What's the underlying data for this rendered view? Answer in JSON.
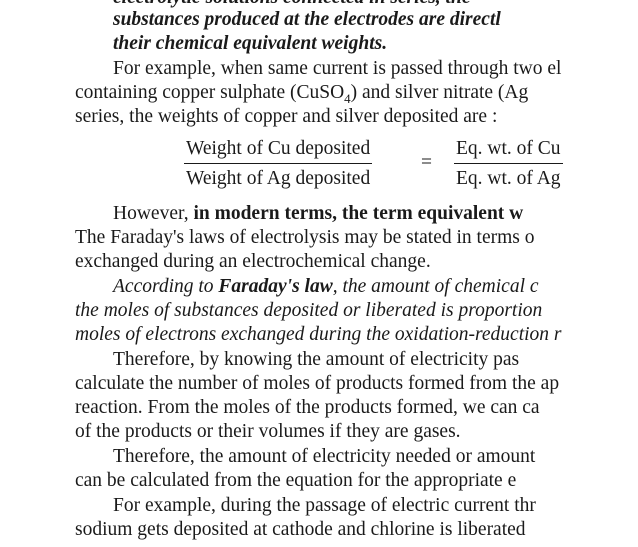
{
  "lines": [
    [
      "electrolytic solutions connected in series, the"
    ],
    [
      "substances produced at the electrodes are directl"
    ],
    [
      "their chemical equivalent weights."
    ],
    [
      "For example, when same current is passed through two el"
    ],
    [
      "containing copper sulphate (CuSO",
      "4",
      ") and silver nitrate (Ag"
    ],
    [
      "series, the weights of copper and silver deposited are :"
    ],
    [
      "However, ",
      "in modern terms, the term equivalent w"
    ],
    [
      "The Faraday's laws of electrolysis may be stated in terms o"
    ],
    [
      "exchanged during an electrochemical change."
    ],
    [
      "According to ",
      "Faraday's law",
      ", the amount of chemical c"
    ],
    [
      "the moles of substances deposited or liberated is proportion"
    ],
    [
      "moles of electrons exchanged during the oxidation-reduction r"
    ],
    [
      "Therefore, by knowing the amount of electricity pas"
    ],
    [
      "calculate the number of moles of products formed from the ap"
    ],
    [
      "reaction. From the moles of the products formed, we can ca"
    ],
    [
      "of the products or their volumes if they are gases."
    ],
    [
      "Therefore, the amount of electricity needed or amount"
    ],
    [
      "can be calculated from the equation for the appropriate e"
    ],
    [
      "For example, during the passage of electric current thr"
    ],
    [
      "sodium gets deposited at cathode and chlorine is liberated"
    ]
  ],
  "equation": {
    "left_numerator": "Weight of Cu deposited",
    "left_denominator": "Weight of Ag deposited",
    "operator": "=",
    "right_numerator": "Eq. wt. of Cu",
    "right_denominator": "Eq. wt. of Ag"
  }
}
